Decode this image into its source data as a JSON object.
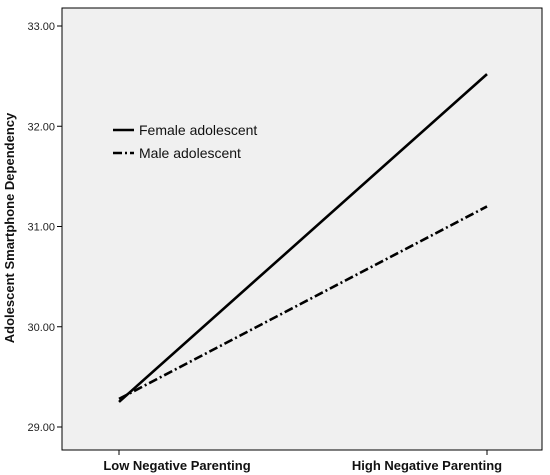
{
  "chart_data": {
    "type": "line",
    "categories": [
      "Low Negative Parenting",
      "High Negative Parenting"
    ],
    "ylabel": "Adolescent Smartphone Dependency",
    "ylim": [
      29.0,
      33.0
    ],
    "yticks": [
      "29.00",
      "30.00",
      "31.00",
      "32.00",
      "33.00"
    ],
    "grid": false,
    "legend_position": "upper-left",
    "plot_background": "#f0f0f0",
    "line_color": "#000000",
    "series": [
      {
        "name": "Female adolescent",
        "style": "solid",
        "values": [
          29.25,
          32.52
        ]
      },
      {
        "name": "Male adolescent",
        "style": "dash-dot",
        "values": [
          29.28,
          31.2
        ]
      }
    ]
  }
}
